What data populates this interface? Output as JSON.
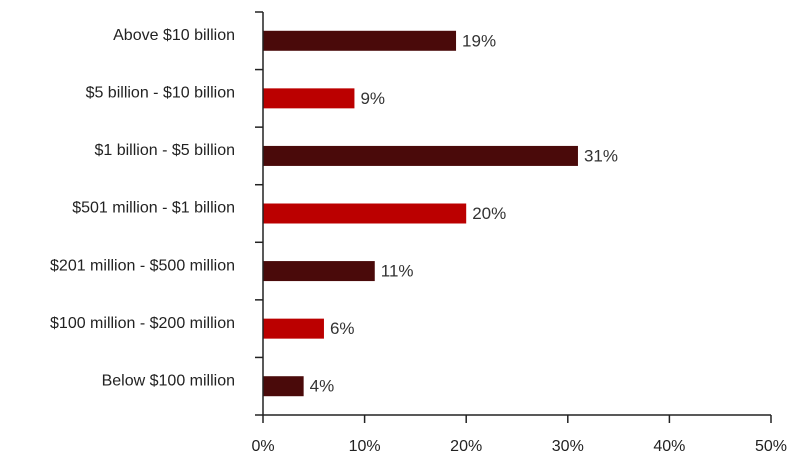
{
  "chart_data": {
    "type": "bar",
    "orientation": "horizontal",
    "categories": [
      "Above $10 billion",
      "$5 billion - $10 billion",
      "$1 billion - $5 billion",
      "$501 million - $1 billion",
      "$201 million - $500 million",
      "$100 million - $200 million",
      "Below $100 million"
    ],
    "values": [
      19,
      9,
      31,
      20,
      11,
      6,
      4
    ],
    "data_labels": [
      "19%",
      "9%",
      "31%",
      "20%",
      "11%",
      "6%",
      "4%"
    ],
    "colors": [
      "#4a0a0a",
      "#bb0000",
      "#4a0a0a",
      "#bb0000",
      "#4a0a0a",
      "#bb0000",
      "#4a0a0a"
    ],
    "xlim": [
      0,
      50
    ],
    "xticks": [
      0,
      10,
      20,
      30,
      40,
      50
    ],
    "xtick_labels": [
      "0%",
      "10%",
      "20%",
      "30%",
      "40%",
      "50%"
    ],
    "grid": false,
    "legend": "none"
  }
}
